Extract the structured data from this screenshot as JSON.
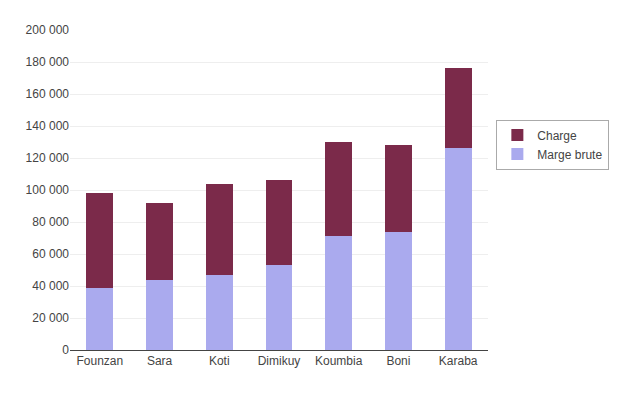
{
  "chart_data": {
    "type": "bar",
    "stacked": true,
    "categories": [
      "Founzan",
      "Sara",
      "Koti",
      "Dimikuy",
      "Koumbia",
      "Boni",
      "Karaba"
    ],
    "series": [
      {
        "name": "Marge brute",
        "color": "#aaaaee",
        "values": [
          39000,
          44000,
          47000,
          53000,
          71000,
          74000,
          126000
        ]
      },
      {
        "name": "Charge",
        "color": "#7b2a4a",
        "values": [
          59000,
          48000,
          57000,
          53000,
          59000,
          54000,
          50000
        ]
      }
    ],
    "ylim": [
      0,
      200000
    ],
    "yticks": [
      0,
      {
        "value": 20000,
        "label": "20 000"
      },
      {
        "value": 40000,
        "label": "40 000"
      },
      {
        "value": 60000,
        "label": "60 000"
      },
      {
        "value": 80000,
        "label": "80 000"
      },
      {
        "value": 100000,
        "label": "100 000"
      },
      {
        "value": 120000,
        "label": "120 000"
      },
      {
        "value": 140000,
        "label": "140 000"
      },
      {
        "value": 160000,
        "label": "160 000"
      },
      {
        "value": 180000,
        "label": "180 000"
      },
      {
        "value": 200000,
        "label": "200 000"
      }
    ],
    "grid": true,
    "legend": "right"
  }
}
